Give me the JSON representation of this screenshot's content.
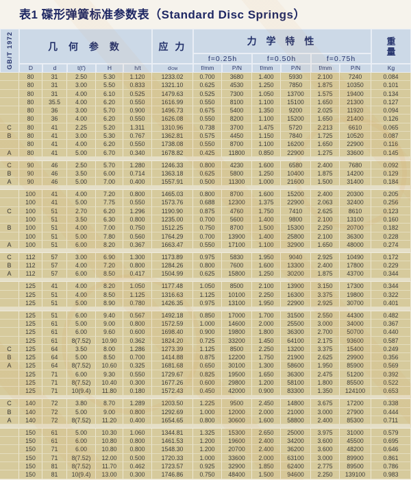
{
  "title": "表1 碟形弹簧标准参数表（Standard Disc Springs）",
  "standard_code": "GB/T 1972",
  "header": {
    "geometry": "几 何 参 数",
    "stress": "应 力",
    "mechanical": "力 学 特 性",
    "weight": "重量",
    "sigma_base": "σ",
    "sigma_sub": "OM",
    "f_groups": [
      "f=0.25h",
      "f=0.50h",
      "f=0.75h"
    ],
    "columns": [
      "D",
      "d",
      "t(t')",
      "H",
      "h/t",
      "f/mm",
      "P/N",
      "f/mm",
      "P/N",
      "f/mm",
      "P/N",
      "Kg"
    ]
  },
  "colors": {
    "header_bg": "#ccd9e7",
    "header_text": "#22306a",
    "row_bg": "#d6ca9c",
    "gap_bg": "#e5dfc8",
    "title_text": "#1e2763",
    "watermark_orange": "#dd8c3a"
  },
  "table": {
    "groups": [
      {
        "rows": [
          [
            "",
            "80",
            "31",
            "2.50",
            "5.30",
            "1.120",
            "1233.02",
            "0.700",
            "3680",
            "1.400",
            "5930",
            "2.100",
            "7240",
            "0.084"
          ],
          [
            "",
            "80",
            "31",
            "3.00",
            "5.50",
            "0.833",
            "1321.10",
            "0.625",
            "4530",
            "1.250",
            "7850",
            "1.875",
            "10350",
            "0.101"
          ],
          [
            "",
            "80",
            "31",
            "4.00",
            "6.10",
            "0.525",
            "1479.63",
            "0.525",
            "7300",
            "1.050",
            "13700",
            "1.575",
            "19400",
            "0.134"
          ],
          [
            "",
            "80",
            "35.5",
            "4.00",
            "6.20",
            "0.550",
            "1616.99",
            "0.550",
            "8100",
            "1.100",
            "15100",
            "1.650",
            "21300",
            "0.127"
          ],
          [
            "",
            "80",
            "36",
            "3.00",
            "5.70",
            "0.900",
            "1496.73",
            "0.675",
            "5400",
            "1.350",
            "9200",
            "2.025",
            "11920",
            "0.094"
          ],
          [
            "",
            "80",
            "36",
            "4.00",
            "6.20",
            "0.550",
            "1626.08",
            "0.550",
            "8200",
            "1.100",
            "15200",
            "1.650",
            "21400",
            "0.126"
          ],
          [
            "C",
            "80",
            "41",
            "2.25",
            "5.20",
            "1.311",
            "1310.96",
            "0.738",
            "3700",
            "1.475",
            "5720",
            "2.213",
            "6610",
            "0.065"
          ],
          [
            "B",
            "80",
            "41",
            "3.00",
            "5.30",
            "0.767",
            "1362.81",
            "0.575",
            "4450",
            "1.150",
            "7840",
            "1.725",
            "10520",
            "0.087"
          ],
          [
            "",
            "80",
            "41",
            "4.00",
            "6.20",
            "0.550",
            "1738.08",
            "0.550",
            "8700",
            "1.100",
            "16200",
            "1.650",
            "22900",
            "0.116"
          ],
          [
            "A",
            "80",
            "41",
            "5.00",
            "6.70",
            "0.340",
            "1678.82",
            "0.425",
            "11800",
            "0.850",
            "22900",
            "1.275",
            "33600",
            "0.145"
          ]
        ]
      },
      {
        "rows": [
          [
            "C",
            "90",
            "46",
            "2.50",
            "5.70",
            "1.280",
            "1246.33",
            "0.800",
            "4230",
            "1.600",
            "6580",
            "2.400",
            "7680",
            "0.092"
          ],
          [
            "B",
            "90",
            "46",
            "3.50",
            "6.00",
            "0.714",
            "1363.18",
            "0.625",
            "5800",
            "1.250",
            "10400",
            "1.875",
            "14200",
            "0.129"
          ],
          [
            "A",
            "90",
            "46",
            "5.00",
            "7.00",
            "0.400",
            "1557.91",
            "0.500",
            "11300",
            "1.000",
            "21600",
            "1.500",
            "31400",
            "0.184"
          ]
        ]
      },
      {
        "rows": [
          [
            "",
            "100",
            "41",
            "4.00",
            "7.20",
            "0.800",
            "1465.03",
            "0.800",
            "8700",
            "1.600",
            "15200",
            "2.400",
            "20300",
            "0.205"
          ],
          [
            "",
            "100",
            "41",
            "5.00",
            "7.75",
            "0.550",
            "1573.76",
            "0.688",
            "12300",
            "1.375",
            "22900",
            "2.063",
            "32400",
            "0.256"
          ],
          [
            "C",
            "100",
            "51",
            "2.70",
            "6.20",
            "1.296",
            "1190.90",
            "0.875",
            "4760",
            "1.750",
            "7410",
            "2.625",
            "8610",
            "0.123"
          ],
          [
            "",
            "100",
            "51",
            "3.50",
            "6.30",
            "0.800",
            "1235.00",
            "0.700",
            "5600",
            "1.400",
            "9800",
            "2.100",
            "13100",
            "0.160"
          ],
          [
            "B",
            "100",
            "51",
            "4.00",
            "7.00",
            "0.750",
            "1512.25",
            "0.750",
            "8700",
            "1.500",
            "15300",
            "2.250",
            "20700",
            "0.182"
          ],
          [
            "",
            "100",
            "51",
            "5.00",
            "7.80",
            "0.560",
            "1764.29",
            "0.700",
            "13900",
            "1.400",
            "25800",
            "2.100",
            "36300",
            "0.228"
          ],
          [
            "A",
            "100",
            "51",
            "6.00",
            "8.20",
            "0.367",
            "1663.47",
            "0.550",
            "17100",
            "1.100",
            "32900",
            "1.650",
            "48000",
            "0.274"
          ]
        ]
      },
      {
        "rows": [
          [
            "C",
            "112",
            "57",
            "3.00",
            "6.90",
            "1.300",
            "1173.89",
            "0.975",
            "5830",
            "1.950",
            "9040",
            "2.925",
            "10490",
            "0.172"
          ],
          [
            "B",
            "112",
            "57",
            "4.00",
            "7.20",
            "0.800",
            "1284.26",
            "0.800",
            "7600",
            "1.600",
            "13300",
            "2.400",
            "17800",
            "0.229"
          ],
          [
            "A",
            "112",
            "57",
            "6.00",
            "8.50",
            "0.417",
            "1504.99",
            "0.625",
            "15800",
            "1.250",
            "30200",
            "1.875",
            "43700",
            "0.344"
          ]
        ]
      },
      {
        "rows": [
          [
            "",
            "125",
            "41",
            "4.00",
            "8.20",
            "1.050",
            "1177.48",
            "1.050",
            "8500",
            "2.100",
            "13900",
            "3.150",
            "17300",
            "0.344"
          ],
          [
            "",
            "125",
            "51",
            "4.00",
            "8.50",
            "1.125",
            "1316.63",
            "1.125",
            "10100",
            "2.250",
            "16300",
            "3.375",
            "19800",
            "0.322"
          ],
          [
            "",
            "125",
            "51",
            "5.00",
            "8.90",
            "0.780",
            "1426.35",
            "0.975",
            "13100",
            "1.950",
            "22900",
            "2.925",
            "30700",
            "0.401"
          ]
        ]
      },
      {
        "rows": [
          [
            "",
            "125",
            "51",
            "6.00",
            "9.40",
            "0.567",
            "1492.18",
            "0.850",
            "17000",
            "1.700",
            "31500",
            "2.550",
            "44300",
            "0.482"
          ],
          [
            "",
            "125",
            "61",
            "5.00",
            "9.00",
            "0.800",
            "1572.59",
            "1.000",
            "14600",
            "2.000",
            "25500",
            "3.000",
            "34000",
            "0.367"
          ],
          [
            "",
            "125",
            "61",
            "6.00",
            "9.60",
            "0.600",
            "1698.40",
            "0.900",
            "19800",
            "1.800",
            "36300",
            "2.700",
            "50700",
            "0.440"
          ],
          [
            "",
            "125",
            "61",
            "8(7.52)",
            "10.90",
            "0.362",
            "1824.20",
            "0.725",
            "33200",
            "1.450",
            "64100",
            "2.175",
            "93600",
            "0.587"
          ],
          [
            "C",
            "125",
            "64",
            "3.50",
            "8.00",
            "1.286",
            "1273.39",
            "1.125",
            "8500",
            "2.250",
            "13200",
            "3.375",
            "15400",
            "0.249"
          ],
          [
            "B",
            "125",
            "64",
            "5.00",
            "8.50",
            "0.700",
            "1414.88",
            "0.875",
            "12200",
            "1.750",
            "21900",
            "2.625",
            "29900",
            "0.356"
          ],
          [
            "A",
            "125",
            "64",
            "8(7.52)",
            "10.60",
            "0.325",
            "1681.68",
            "0.650",
            "30100",
            "1.300",
            "58600",
            "1.950",
            "85900",
            "0.569"
          ],
          [
            "",
            "125",
            "71",
            "6.00",
            "9.30",
            "0.550",
            "1729.67",
            "0.825",
            "19500",
            "1.650",
            "36300",
            "2.475",
            "51200",
            "0.392"
          ],
          [
            "",
            "125",
            "71",
            "8(7.52)",
            "10.40",
            "0.300",
            "1677.26",
            "0.600",
            "29800",
            "1.200",
            "58100",
            "1.800",
            "85500",
            "0.522"
          ],
          [
            "",
            "125",
            "71",
            "10(9.4)",
            "11.80",
            "0.180",
            "1572.43",
            "0.450",
            "42000",
            "0.900",
            "83300",
            "1.350",
            "124100",
            "0.653"
          ]
        ]
      },
      {
        "rows": [
          [
            "C",
            "140",
            "72",
            "3.80",
            "8.70",
            "1.289",
            "1203.50",
            "1.225",
            "9500",
            "2.450",
            "14800",
            "3.675",
            "17200",
            "0.338"
          ],
          [
            "B",
            "140",
            "72",
            "5.00",
            "9.00",
            "0.800",
            "1292.69",
            "1.000",
            "12000",
            "2.000",
            "21000",
            "3.000",
            "27900",
            "0.444"
          ],
          [
            "A",
            "140",
            "72",
            "8(7.52)",
            "11.20",
            "0.400",
            "1654.65",
            "0.800",
            "30600",
            "1.600",
            "58800",
            "2.400",
            "85300",
            "0.711"
          ]
        ]
      },
      {
        "rows": [
          [
            "",
            "150",
            "61",
            "5.00",
            "10.30",
            "1.060",
            "1344.81",
            "1.325",
            "15300",
            "2.650",
            "25000",
            "3.975",
            "31000",
            "0.579"
          ],
          [
            "",
            "150",
            "61",
            "6.00",
            "10.80",
            "0.800",
            "1461.53",
            "1.200",
            "19600",
            "2.400",
            "34200",
            "3.600",
            "45500",
            "0.695"
          ],
          [
            "",
            "150",
            "71",
            "6.00",
            "10.80",
            "0.800",
            "1548.30",
            "1.200",
            "20700",
            "2.400",
            "36200",
            "3.600",
            "48200",
            "0.646"
          ],
          [
            "",
            "150",
            "71",
            "8(7.52)",
            "12.00",
            "0.500",
            "1720.33",
            "1.000",
            "33600",
            "2.000",
            "63100",
            "3.000",
            "89900",
            "0.861"
          ],
          [
            "",
            "150",
            "81",
            "8(7.52)",
            "11.70",
            "0.462",
            "1723.57",
            "0.925",
            "32900",
            "1.850",
            "62400",
            "2.775",
            "89500",
            "0.786"
          ],
          [
            "",
            "150",
            "81",
            "10(9.4)",
            "13.00",
            "0.300",
            "1746.86",
            "0.750",
            "48400",
            "1.500",
            "94600",
            "2.250",
            "139100",
            "0.983"
          ]
        ]
      }
    ]
  }
}
